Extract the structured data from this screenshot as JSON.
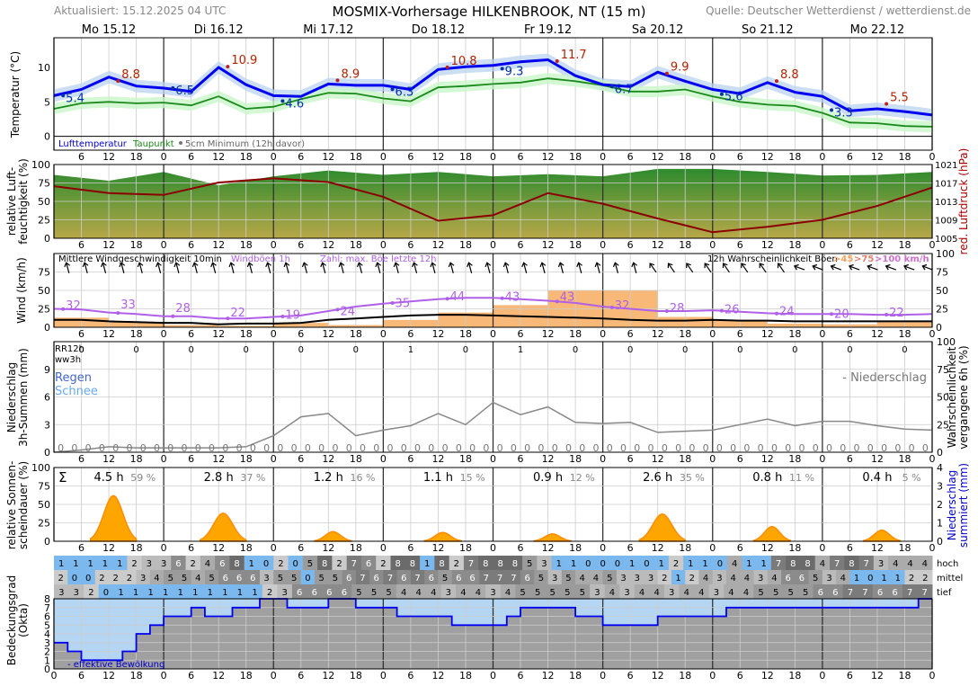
{
  "header": {
    "updated": "Aktualisiert: 15.12.2025 04 UTC",
    "title": "MOSMIX-Vorhersage HILKENBROOK, NT (15 m)",
    "source": "Quelle: Deutscher Wetterdienst / wetterdienst.de"
  },
  "chart_data": {
    "type": "line",
    "days": [
      "Mo 15.12",
      "Di 16.12",
      "Mi 17.12",
      "Do 18.12",
      "Fr 19.12",
      "Sa 20.12",
      "So 21.12",
      "Mo 22.12"
    ],
    "hour_ticks": [
      "6",
      "12",
      "18",
      "0"
    ],
    "panels": {
      "temperature": {
        "ylabel": "Temperatur (°C)",
        "yticks": [
          0,
          5,
          10
        ],
        "ylim": [
          -2,
          14.3
        ],
        "legend": [
          "Lufttemperatur",
          "Taupunkt",
          "5cm Minimum (12h davor)"
        ],
        "x": [
          0,
          6,
          12,
          18,
          24,
          30,
          36,
          42,
          48,
          54,
          60,
          66,
          72,
          78,
          84,
          90,
          96,
          102,
          108,
          114,
          120,
          126,
          132,
          138,
          144,
          150,
          156,
          162,
          168,
          174,
          180,
          186,
          192
        ],
        "temp": [
          5.9,
          6.8,
          8.6,
          7.3,
          7.0,
          6.5,
          10.0,
          7.5,
          5.9,
          5.8,
          7.6,
          7.4,
          7.4,
          6.8,
          9.7,
          10.1,
          10.3,
          10.8,
          11.1,
          8.8,
          7.5,
          7.2,
          9.3,
          8.0,
          6.8,
          6.2,
          7.8,
          6.4,
          5.8,
          3.7,
          4.0,
          3.6,
          3.1
        ],
        "dew": [
          4.0,
          4.8,
          5.0,
          4.8,
          4.9,
          4.5,
          5.8,
          4.0,
          4.3,
          5.4,
          6.3,
          6.2,
          5.5,
          5.1,
          7.1,
          7.3,
          7.6,
          7.8,
          8.4,
          8.0,
          7.4,
          6.5,
          6.5,
          6.8,
          5.8,
          5.0,
          4.6,
          4.4,
          3.4,
          2.0,
          1.9,
          1.5,
          1.4
        ],
        "max_labels": [
          {
            "x": 14,
            "v": "8.8"
          },
          {
            "x": 38,
            "v": "10.9"
          },
          {
            "x": 62,
            "v": "8.9"
          },
          {
            "x": 86,
            "v": "10.8"
          },
          {
            "x": 110,
            "v": "11.7"
          },
          {
            "x": 134,
            "v": "9.9"
          },
          {
            "x": 158,
            "v": "8.8"
          },
          {
            "x": 182,
            "v": "5.5"
          }
        ],
        "min_labels": [
          {
            "x": 2,
            "v": "5.4"
          },
          {
            "x": 26,
            "v": "6.5"
          },
          {
            "x": 50,
            "v": "4.6"
          },
          {
            "x": 74,
            "v": "6.3"
          },
          {
            "x": 98,
            "v": "9.3"
          },
          {
            "x": 122,
            "v": "6.7"
          },
          {
            "x": 146,
            "v": "5.6"
          },
          {
            "x": 170,
            "v": "3.3"
          }
        ]
      },
      "humidity_pressure": {
        "ylabel": "relative Luft-feuchtigkeit (%)",
        "y2label": "red. Luftdruck (hPa)",
        "yticks": [
          0,
          25,
          50,
          75,
          100
        ],
        "y2ticks": [
          1005,
          1009,
          1013,
          1017,
          1021
        ],
        "x": [
          0,
          12,
          24,
          36,
          48,
          60,
          72,
          84,
          96,
          108,
          120,
          132,
          144,
          156,
          168,
          180,
          192
        ],
        "humidity": [
          86,
          78,
          90,
          72,
          84,
          92,
          86,
          90,
          84,
          87,
          84,
          94,
          94,
          90,
          85,
          86,
          90
        ],
        "pressure": [
          1016.3,
          1014.8,
          1014.4,
          1017.1,
          1018.0,
          1017.2,
          1014.0,
          1008.8,
          1010.0,
          1014.8,
          1012.5,
          1009.3,
          1006.3,
          1007.5,
          1009.0,
          1012.0,
          1016.0
        ]
      },
      "wind": {
        "ylabel": "Wind (km/h)",
        "y2label": "",
        "yticks": [
          0,
          25,
          50,
          75
        ],
        "y2ticks": [
          0,
          25,
          50,
          75,
          100
        ],
        "legend": [
          "Mittlere Windgeschwindigkeit 10min",
          "Windböen 1h",
          "Zahl: max. Böe letzte 12h",
          "12h Wahrscheinlichkeit Böen",
          ">45",
          ">75",
          ">100 km/h"
        ],
        "x": [
          0,
          6,
          12,
          18,
          24,
          30,
          36,
          42,
          48,
          54,
          60,
          66,
          72,
          78,
          84,
          90,
          96,
          102,
          108,
          114,
          120,
          126,
          132,
          138,
          144,
          150,
          156,
          162,
          168,
          174,
          180,
          186,
          192
        ],
        "mean": [
          10,
          10,
          8,
          7,
          6,
          6,
          4,
          5,
          5,
          6,
          10,
          12,
          14,
          16,
          17,
          17,
          16,
          15,
          14,
          13,
          12,
          10,
          9,
          9,
          10,
          9,
          9,
          8,
          8,
          8,
          8,
          8,
          8
        ],
        "gust": [
          25,
          24,
          20,
          18,
          15,
          15,
          12,
          12,
          14,
          16,
          22,
          28,
          32,
          35,
          38,
          40,
          40,
          38,
          36,
          33,
          28,
          25,
          22,
          22,
          23,
          21,
          19,
          18,
          18,
          18,
          17,
          17,
          18
        ],
        "gust_labels": [
          {
            "x": 2,
            "v": "32"
          },
          {
            "x": 14,
            "v": "33"
          },
          {
            "x": 26,
            "v": "28"
          },
          {
            "x": 38,
            "v": "22"
          },
          {
            "x": 50,
            "v": "19"
          },
          {
            "x": 62,
            "v": "24"
          },
          {
            "x": 74,
            "v": "35"
          },
          {
            "x": 86,
            "v": "44"
          },
          {
            "x": 98,
            "v": "43"
          },
          {
            "x": 110,
            "v": "43"
          },
          {
            "x": 122,
            "v": "32"
          },
          {
            "x": 134,
            "v": "28"
          },
          {
            "x": 146,
            "v": "26"
          },
          {
            "x": 158,
            "v": "24"
          },
          {
            "x": 170,
            "v": "20"
          },
          {
            "x": 182,
            "v": "22"
          }
        ],
        "gust_prob_12h": [
          13,
          7,
          3,
          2,
          6,
          3,
          10,
          20,
          30,
          50,
          50,
          14,
          9,
          5,
          4,
          7
        ]
      },
      "precipitation": {
        "ylabel": "Niederschlag 3h-Summen (mm)",
        "y2label": "Wahrscheinlichkeit vergangene 6h (%)",
        "yticks": [
          0,
          3,
          6,
          9
        ],
        "y2ticks": [
          0,
          25,
          50,
          75,
          100
        ],
        "left_labels": [
          "RR12h",
          "ww3h"
        ],
        "regen": "Regen",
        "schnee": "Schnee",
        "legend": "- Niederschlag",
        "rr12h": [
          "0",
          "0",
          "0",
          "0",
          "0",
          "0",
          "1",
          "0",
          "1",
          "0",
          "0",
          "0",
          "0",
          "0",
          "0",
          "0"
        ],
        "ww3h": [
          "0",
          "0",
          "0",
          "0",
          "0",
          "0",
          "0",
          "0",
          "0",
          "0",
          "0",
          "0",
          "0",
          "0",
          "0",
          "0",
          "0",
          "0",
          "0",
          "0",
          "0",
          "0",
          "0",
          "0",
          "0",
          "0",
          "0",
          "0",
          "0",
          "0",
          "0",
          "0",
          "0",
          "0",
          "0",
          "0",
          "0",
          "0",
          "0",
          "0",
          "0",
          "0",
          "0",
          "0",
          "0",
          "0",
          "0",
          "0",
          "0",
          "0",
          "0",
          "0",
          "0",
          "0",
          "0",
          "0",
          "0",
          "0",
          "0",
          "0",
          "0",
          "0",
          "0",
          "0"
        ],
        "prob_x": [
          0,
          6,
          12,
          18,
          24,
          30,
          36,
          42,
          48,
          54,
          60,
          66,
          72,
          78,
          84,
          90,
          96,
          102,
          108,
          114,
          120,
          126,
          132,
          138,
          144,
          150,
          156,
          162,
          168,
          174,
          180,
          186,
          192
        ],
        "prob": [
          0,
          2,
          5,
          4,
          4,
          4,
          4,
          5,
          15,
          32,
          35,
          15,
          20,
          24,
          35,
          25,
          45,
          34,
          41,
          27,
          26,
          27,
          18,
          19,
          20,
          25,
          30,
          24,
          28,
          28,
          24,
          21,
          20
        ]
      },
      "sunshine": {
        "ylabel": "relative Sonnen-scheindauer (%)",
        "y2label": "Niederschlag summiert (mm)",
        "yticks": [
          0,
          25,
          50,
          75,
          100
        ],
        "y2ticks": [
          0,
          1,
          2,
          3,
          4
        ],
        "sigma": "Σ",
        "daily": [
          {
            "h": "4.5 h",
            "p": "59 %"
          },
          {
            "h": "2.8 h",
            "p": "37 %"
          },
          {
            "h": "1.2 h",
            "p": "16 %"
          },
          {
            "h": "1.1 h",
            "p": "15 %"
          },
          {
            "h": "0.9 h",
            "p": "12 %"
          },
          {
            "h": "2.6 h",
            "p": "35 %"
          },
          {
            "h": "0.8 h",
            "p": "11 %"
          },
          {
            "h": "0.4 h",
            "p": "5 %"
          }
        ],
        "peaks": [
          62,
          38,
          13,
          12,
          10,
          37,
          20,
          15
        ]
      },
      "cloud": {
        "ylabel": "Bedeckungsgrad (Okta)",
        "yticks": [
          0,
          1,
          2,
          3,
          4,
          5,
          6,
          7,
          8
        ],
        "row_labels": [
          "hoch",
          "mittel",
          "tief"
        ],
        "effective_label": "- effektive Bewölkung",
        "hoch": [
          "1",
          "1",
          "1",
          "1",
          "1",
          "2",
          "3",
          "3",
          "6",
          "2",
          "4",
          "6",
          "8",
          "1",
          "0",
          "2",
          "0",
          "5",
          "8",
          "2",
          "7",
          "6",
          "2",
          "8",
          "8",
          "1",
          "8",
          "2",
          "7",
          "8",
          "8",
          "8",
          "5",
          "3",
          "1",
          "1",
          "0",
          "0",
          "0",
          "1",
          "0",
          "1",
          "2",
          "1",
          "1",
          "0",
          "4",
          "1",
          "1",
          "7",
          "8",
          "8",
          "4",
          "7",
          "8",
          "7",
          "3",
          "4",
          "4",
          "4"
        ],
        "mittel": [
          "2",
          "0",
          "0",
          "2",
          "2",
          "2",
          "3",
          "4",
          "5",
          "5",
          "4",
          "5",
          "6",
          "6",
          "6",
          "3",
          "5",
          "5",
          "0",
          "5",
          "5",
          "6",
          "7",
          "6",
          "7",
          "6",
          "7",
          "6",
          "5",
          "6",
          "6",
          "7",
          "7",
          "7",
          "6",
          "5",
          "3",
          "5",
          "4",
          "4",
          "5",
          "3",
          "3",
          "3",
          "2",
          "1",
          "2",
          "4",
          "3",
          "4",
          "4",
          "3",
          "4",
          "6",
          "6",
          "5",
          "3",
          "4",
          "1",
          "0",
          "1",
          "1",
          "2",
          "2"
        ],
        "tief": [
          "3",
          "3",
          "2",
          "0",
          "1",
          "1",
          "1",
          "1",
          "1",
          "1",
          "1",
          "1",
          "1",
          "1",
          "2",
          "3",
          "6",
          "6",
          "6",
          "6",
          "5",
          "5",
          "5",
          "4",
          "4",
          "4",
          "3",
          "4",
          "4",
          "3",
          "4",
          "5",
          "5",
          "5",
          "5",
          "5",
          "3",
          "4",
          "3",
          "4",
          "4",
          "3",
          "4",
          "4",
          "3",
          "4",
          "4",
          "5",
          "5",
          "5",
          "5",
          "6",
          "6",
          "7",
          "7",
          "6",
          "6",
          "7",
          "7"
        ],
        "effective": [
          3,
          2,
          1,
          1,
          1,
          2,
          4,
          5,
          6,
          6,
          7,
          6,
          6,
          7,
          7,
          8,
          8,
          7,
          7,
          7,
          8,
          8,
          7,
          7,
          7,
          6,
          6,
          6,
          6,
          5,
          5,
          5,
          5,
          6,
          7,
          7,
          7,
          7,
          6,
          6,
          5,
          5,
          5,
          5,
          6,
          6,
          6,
          6,
          6,
          7,
          7,
          7,
          7,
          7,
          7,
          7,
          7,
          7,
          7,
          7,
          7,
          7,
          7,
          8
        ]
      }
    }
  }
}
